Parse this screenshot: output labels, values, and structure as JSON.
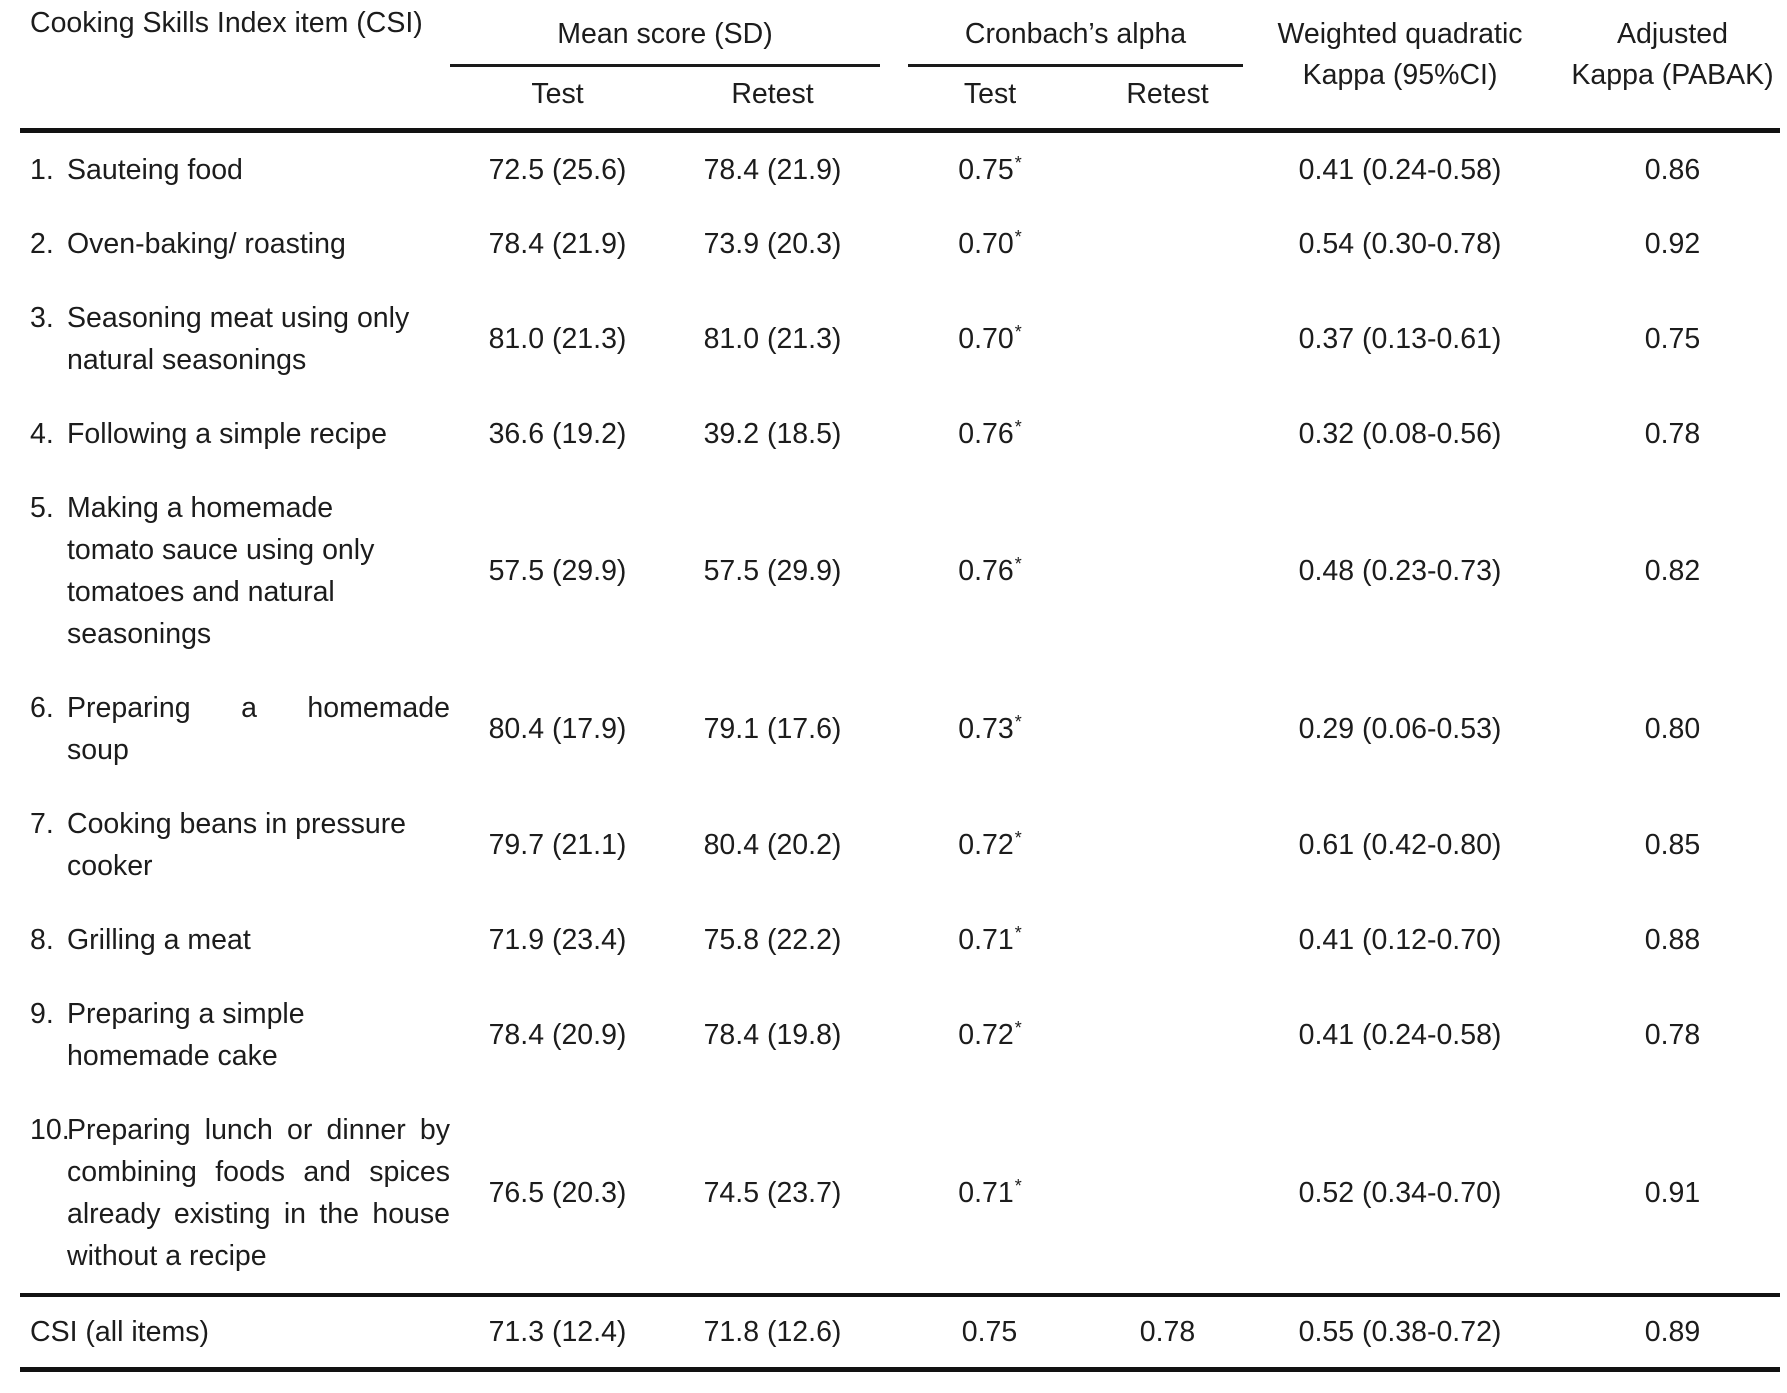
{
  "table": {
    "header": {
      "item": "Cooking Skills Index item (CSI)",
      "mean_group": "Mean score (SD)",
      "alpha_group": "Cronbach’s alpha",
      "kappa_line1": "Weighted quadratic",
      "kappa_line2": "Kappa (95%CI)",
      "pabak_line1": "Adjusted",
      "pabak_line2": "Kappa (PABAK)",
      "mean_test": "Test",
      "mean_retest": "Retest",
      "alpha_test": "Test",
      "alpha_retest": "Retest"
    },
    "rows": [
      {
        "num": "1.",
        "label_lines": [
          "Sauteing food"
        ],
        "mean_test": "72.5 (25.6)",
        "mean_retest": "78.4 (21.9)",
        "alpha_test": "0.75",
        "alpha_test_sup": "*",
        "alpha_retest": "",
        "kappa": "0.41 (0.24-0.58)",
        "pabak": "0.86"
      },
      {
        "num": "2.",
        "label_lines": [
          "Oven-baking/ roasting"
        ],
        "mean_test": "78.4 (21.9)",
        "mean_retest": "73.9 (20.3)",
        "alpha_test": "0.70",
        "alpha_test_sup": "*",
        "alpha_retest": "",
        "kappa": "0.54 (0.30-0.78)",
        "pabak": "0.92"
      },
      {
        "num": "3.",
        "label_lines": [
          "Seasoning meat using only",
          "natural seasonings"
        ],
        "mean_test": "81.0 (21.3)",
        "mean_retest": "81.0 (21.3)",
        "alpha_test": "0.70",
        "alpha_test_sup": "*",
        "alpha_retest": "",
        "kappa": "0.37 (0.13-0.61)",
        "pabak": "0.75"
      },
      {
        "num": "4.",
        "label_lines": [
          "Following a simple recipe"
        ],
        "mean_test": "36.6 (19.2)",
        "mean_retest": "39.2 (18.5)",
        "alpha_test": "0.76",
        "alpha_test_sup": "*",
        "alpha_retest": "",
        "kappa": "0.32 (0.08-0.56)",
        "pabak": "0.78"
      },
      {
        "num": "5.",
        "label_lines": [
          "Making a homemade",
          "tomato sauce using only",
          "tomatoes and natural",
          "seasonings"
        ],
        "mean_test": "57.5 (29.9)",
        "mean_retest": "57.5 (29.9)",
        "alpha_test": "0.76",
        "alpha_test_sup": "*",
        "alpha_retest": "",
        "kappa": "0.48 (0.23-0.73)",
        "pabak": "0.82"
      },
      {
        "num": "6.",
        "label_lines": [
          "Preparing a homemade",
          "soup"
        ],
        "mean_test": "80.4 (17.9)",
        "mean_retest": "79.1 (17.6)",
        "alpha_test": "0.73",
        "alpha_test_sup": "*",
        "alpha_retest": "",
        "kappa": "0.29 (0.06-0.53)",
        "pabak": "0.80"
      },
      {
        "num": "7.",
        "label_lines": [
          "Cooking beans in pressure",
          "cooker"
        ],
        "mean_test": "79.7 (21.1)",
        "mean_retest": "80.4 (20.2)",
        "alpha_test": "0.72",
        "alpha_test_sup": "*",
        "alpha_retest": "",
        "kappa": "0.61 (0.42-0.80)",
        "pabak": "0.85"
      },
      {
        "num": "8.",
        "label_lines": [
          "Grilling a meat"
        ],
        "mean_test": "71.9 (23.4)",
        "mean_retest": "75.8 (22.2)",
        "alpha_test": "0.71",
        "alpha_test_sup": "*",
        "alpha_retest": "",
        "kappa": "0.41 (0.12-0.70)",
        "pabak": "0.88"
      },
      {
        "num": "9.",
        "label_lines": [
          "Preparing a simple",
          "homemade cake"
        ],
        "mean_test": "78.4 (20.9)",
        "mean_retest": "78.4 (19.8)",
        "alpha_test": "0.72",
        "alpha_test_sup": "*",
        "alpha_retest": "",
        "kappa": "0.41 (0.24-0.58)",
        "pabak": "0.78"
      },
      {
        "num": "10.",
        "label_lines": [
          "Preparing lunch or dinner by",
          "combining foods and spices",
          "already existing in the house",
          "without a recipe"
        ],
        "mean_test": "76.5 (20.3)",
        "mean_retest": "74.5 (23.7)",
        "alpha_test": "0.71",
        "alpha_test_sup": "*",
        "alpha_retest": "",
        "kappa": "0.52 (0.34-0.70)",
        "pabak": "0.91"
      }
    ],
    "footer": {
      "label": "CSI (all items)",
      "mean_test": "71.3 (12.4)",
      "mean_retest": "71.8 (12.6)",
      "alpha_test": "0.75",
      "alpha_test_sup": "",
      "alpha_retest": "0.78",
      "kappa": "0.55 (0.38-0.72)",
      "pabak": "0.89"
    }
  }
}
